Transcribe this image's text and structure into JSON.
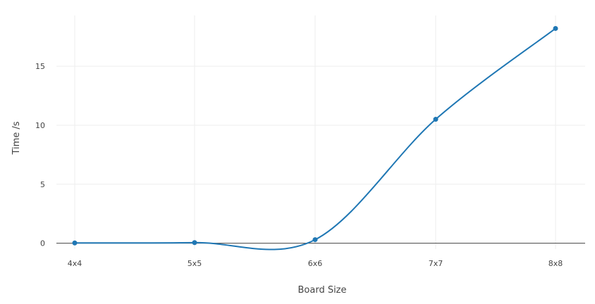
{
  "chart_data": {
    "type": "line",
    "categories": [
      "4x4",
      "5x5",
      "6x6",
      "7x7",
      "8x8"
    ],
    "series": [
      {
        "values": [
          0.02,
          0.05,
          0.3,
          10.5,
          18.2
        ]
      }
    ],
    "xlabel": "Board Size",
    "ylabel": "Time /s",
    "y_ticks": [
      0,
      5,
      10,
      15
    ],
    "ylim": [
      -0.5,
      19.3
    ],
    "grid": true,
    "line_shape": "spline",
    "line_color": "#1f77b4",
    "grid_color": "#eeeeee"
  }
}
